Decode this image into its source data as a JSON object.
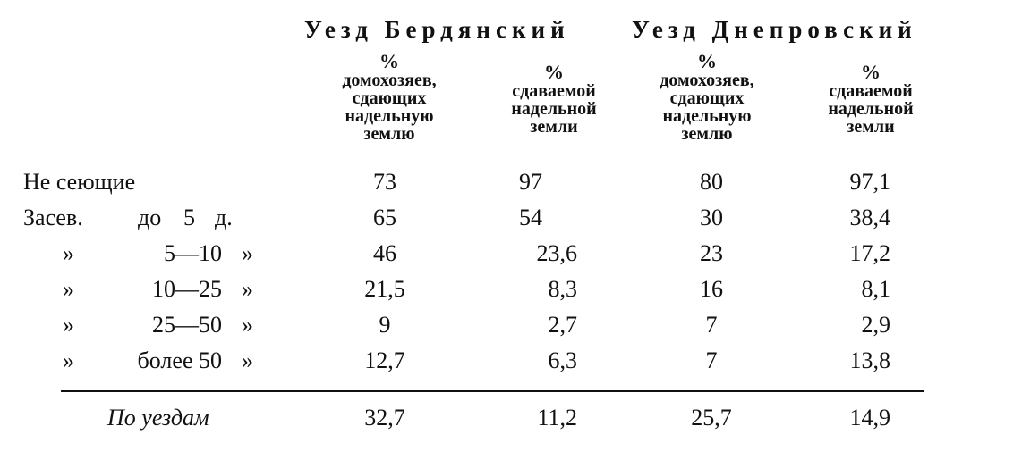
{
  "districts": {
    "berdyansk": "Уезд Бердянский",
    "dneprovsk": "Уезд Днепровский"
  },
  "headers": {
    "h1_pct": "%",
    "h1_text": "домохозяев,\nсдающих\nнадельную\nземлю",
    "h2_pct": "%",
    "h2_text": "сдаваемой\nнадельной\nземли",
    "h3_pct": "%",
    "h3_text": "домохозяев,\nсдающих\nнадельную\nземлю",
    "h4_pct": "%",
    "h4_text": "сдаваемой\nнадельной\nземли"
  },
  "rows": [
    {
      "label": "Не сеющие",
      "v1": "73",
      "v2": "97",
      "v3": "80",
      "v4": "97,1"
    },
    {
      "prefix": "Засев.",
      "do": "до",
      "num": "5",
      "d": "д.",
      "v1": "65",
      "v2": "54",
      "v3": "30",
      "v4": "38,4"
    },
    {
      "ditto": "»",
      "range": "5—10",
      "ditto2": "»",
      "v1": "46",
      "v2": "23,6",
      "v3": "23",
      "v4": "17,2"
    },
    {
      "ditto": "»",
      "range": "10—25",
      "ditto2": "»",
      "v1": "21,5",
      "v2": "8,3",
      "v3": "16",
      "v4": "8,1"
    },
    {
      "ditto": "»",
      "range": "25—50",
      "ditto2": "»",
      "v1": "9",
      "v2": "2,7",
      "v3": "7",
      "v4": "2,9"
    },
    {
      "ditto": "»",
      "range": "более 50",
      "ditto2": "»",
      "v1": "12,7",
      "v2": "6,3",
      "v3": "7",
      "v4": "13,8"
    }
  ],
  "total": {
    "label": "По уездам",
    "v1": "32,7",
    "v2": "11,2",
    "v3": "25,7",
    "v4": "14,9"
  }
}
